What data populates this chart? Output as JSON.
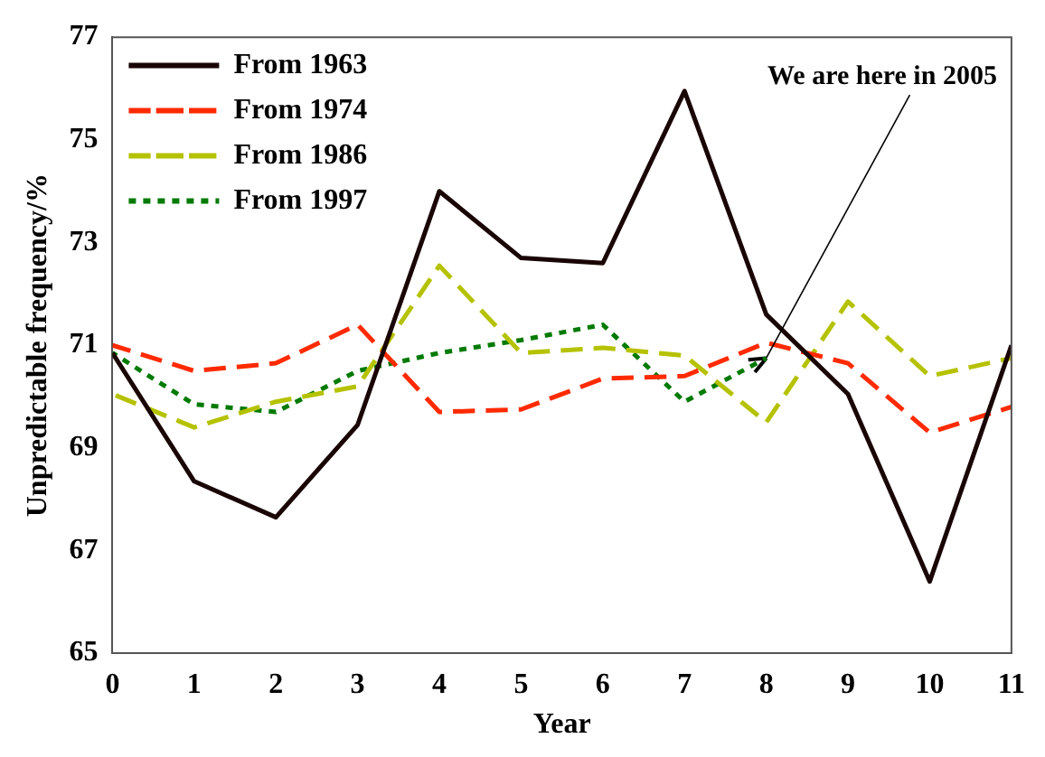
{
  "chart_data": {
    "type": "line",
    "xlabel": "Year",
    "ylabel": "Unpredictable frequency/%",
    "x": [
      0,
      1,
      2,
      3,
      4,
      5,
      6,
      7,
      8,
      9,
      10,
      11
    ],
    "xlim": [
      0,
      11
    ],
    "xticks": [
      0,
      1,
      2,
      3,
      4,
      5,
      6,
      7,
      8,
      9,
      10,
      11
    ],
    "ylim": [
      65,
      77
    ],
    "yticks": [
      65,
      67,
      69,
      71,
      73,
      75,
      77
    ],
    "grid": false,
    "legend": "top left",
    "marker": "none",
    "series": [
      {
        "name": "From 1963",
        "color": "#1a0505",
        "line_style": "solid",
        "values": [
          70.85,
          68.35,
          67.65,
          69.45,
          74.0,
          72.7,
          72.6,
          75.95,
          71.6,
          70.05,
          66.4,
          71.0
        ]
      },
      {
        "name": "From 1974",
        "color": "#ff2a00",
        "line_style": "dashed",
        "values": [
          71.0,
          70.5,
          70.65,
          71.4,
          69.7,
          69.75,
          70.35,
          70.4,
          71.05,
          70.65,
          69.3,
          69.8
        ]
      },
      {
        "name": "From 1986",
        "color": "#b5c200",
        "line_style": "dashed",
        "values": [
          70.05,
          69.4,
          69.9,
          70.2,
          72.55,
          70.85,
          70.95,
          70.8,
          69.5,
          71.85,
          70.4,
          70.75
        ]
      },
      {
        "name": "From 1997",
        "color": "#007a00",
        "line_style": "dotted",
        "values": [
          70.85,
          69.85,
          69.7,
          70.5,
          70.85,
          71.1,
          71.4,
          69.9,
          70.75,
          null,
          null,
          null
        ]
      }
    ],
    "annotations": [
      {
        "text": "We are here in 2005",
        "x": 8,
        "y": 70.75
      }
    ]
  }
}
